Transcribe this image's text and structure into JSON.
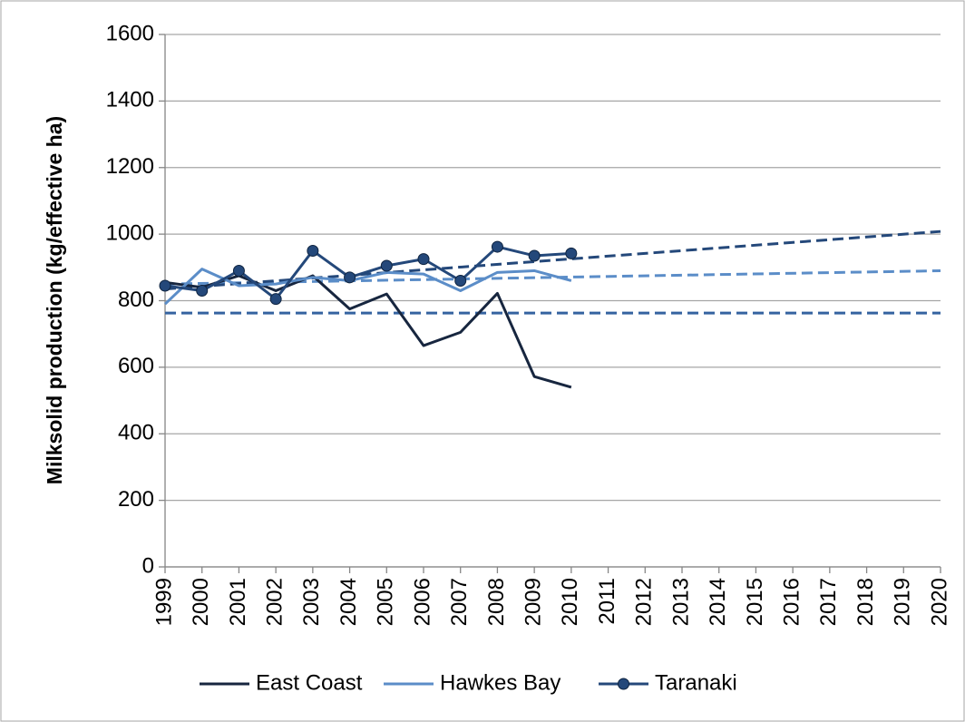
{
  "chart_data": {
    "type": "line",
    "y_axis_label": "Milksolid production (kg/effective ha)",
    "x": [
      1999,
      2000,
      2001,
      2002,
      2003,
      2004,
      2005,
      2006,
      2007,
      2008,
      2009,
      2010,
      2011,
      2012,
      2013,
      2014,
      2015,
      2016,
      2017,
      2018,
      2019,
      2020
    ],
    "xlim": [
      1999,
      2020
    ],
    "ylim": [
      0,
      1600
    ],
    "yticks": [
      0,
      200,
      400,
      600,
      800,
      1000,
      1200,
      1400,
      1600
    ],
    "grid": true,
    "legend": "bottom",
    "series": [
      {
        "name": "East Coast",
        "color": "#17263f",
        "marker": false,
        "values": [
          855,
          840,
          875,
          830,
          875,
          775,
          820,
          665,
          705,
          822,
          572,
          540,
          null,
          null,
          null,
          null,
          null,
          null,
          null,
          null,
          null,
          null
        ]
      },
      {
        "name": "Hawkes Bay",
        "color": "#5b8dc8",
        "marker": false,
        "values": [
          790,
          895,
          845,
          850,
          870,
          860,
          885,
          880,
          830,
          885,
          890,
          860,
          null,
          null,
          null,
          null,
          null,
          null,
          null,
          null,
          null,
          null
        ]
      },
      {
        "name": "Taranaki",
        "color": "#24487a",
        "marker": true,
        "values": [
          845,
          830,
          890,
          805,
          950,
          870,
          905,
          925,
          860,
          962,
          935,
          942,
          null,
          null,
          null,
          null,
          null,
          null,
          null,
          null,
          null,
          null
        ]
      }
    ],
    "trendlines": [
      {
        "color": "#3563a0",
        "x": [
          1999,
          2020
        ],
        "values": [
          763,
          763
        ]
      },
      {
        "color": "#5b8dc8",
        "x": [
          1999,
          2020
        ],
        "values": [
          850,
          890
        ]
      },
      {
        "color": "#24487a",
        "x": [
          1999,
          2020
        ],
        "values": [
          835,
          1008
        ]
      }
    ]
  }
}
